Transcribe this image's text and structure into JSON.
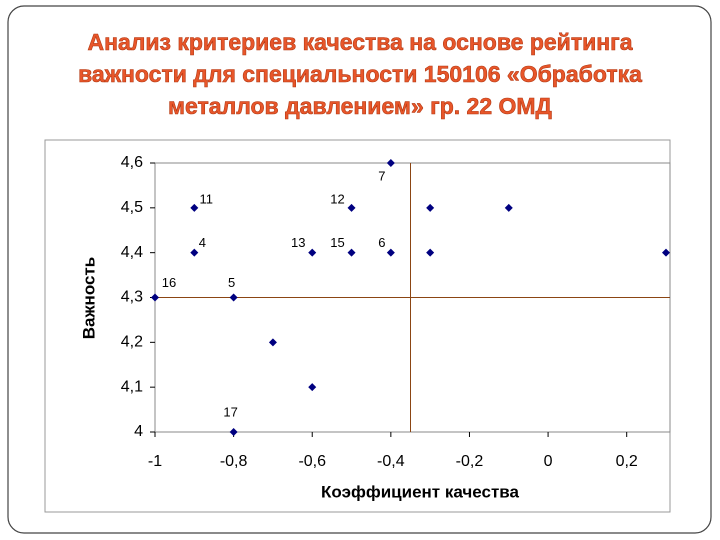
{
  "chart_data": {
    "type": "scatter",
    "title": "Анализ критериев качества на основе рейтинга важности для специальности 150106 «Обработка металлов давлением» гр. 22 ОМД",
    "x_label": "Коэффициент качества",
    "y_label": "Важность",
    "series": [
      {
        "color": "#000080",
        "x": [
          -0.4,
          -0.9,
          -0.5,
          -0.3,
          -0.1,
          -0.9,
          -0.6,
          -0.5,
          -0.4,
          -0.3,
          0.3,
          -1,
          -0.8,
          -0.7,
          -0.6,
          -0.8
        ],
        "values": [
          4.6,
          4.5,
          4.5,
          4.5,
          4.5,
          4.4,
          4.4,
          4.4,
          4.4,
          4.4,
          4.4,
          4.3,
          4.3,
          4.2,
          4.1,
          4.0
        ],
        "point_labels": [
          "7",
          "11",
          "12",
          null,
          null,
          "4",
          "13",
          "15",
          "6",
          null,
          null,
          "16",
          "5",
          null,
          null,
          "17"
        ]
      }
    ],
    "xlim": [
      -1,
      0.3
    ],
    "ylim": [
      4,
      4.6
    ],
    "xticks": [
      {
        "value": -1,
        "label": "-1"
      },
      {
        "value": -0.8,
        "label": "-0,8"
      },
      {
        "value": -0.6,
        "label": "-0,6"
      },
      {
        "value": -0.4,
        "label": "-0,4"
      },
      {
        "value": -0.2,
        "label": "-0,2"
      },
      0,
      {
        "value": 0.2,
        "label": "0,2"
      }
    ],
    "yticks": [
      4,
      {
        "value": 4.1,
        "label": "4,1"
      },
      {
        "value": 4.2,
        "label": "4,2"
      },
      {
        "value": 4.3,
        "label": "4,3"
      },
      {
        "value": 4.4,
        "label": "4,4"
      },
      {
        "value": 4.5,
        "label": "4,5"
      },
      {
        "value": 4.6,
        "label": "4,6"
      }
    ],
    "reference_x": -0.35,
    "reference_y": 4.3,
    "reference_color": "#8b4513"
  }
}
